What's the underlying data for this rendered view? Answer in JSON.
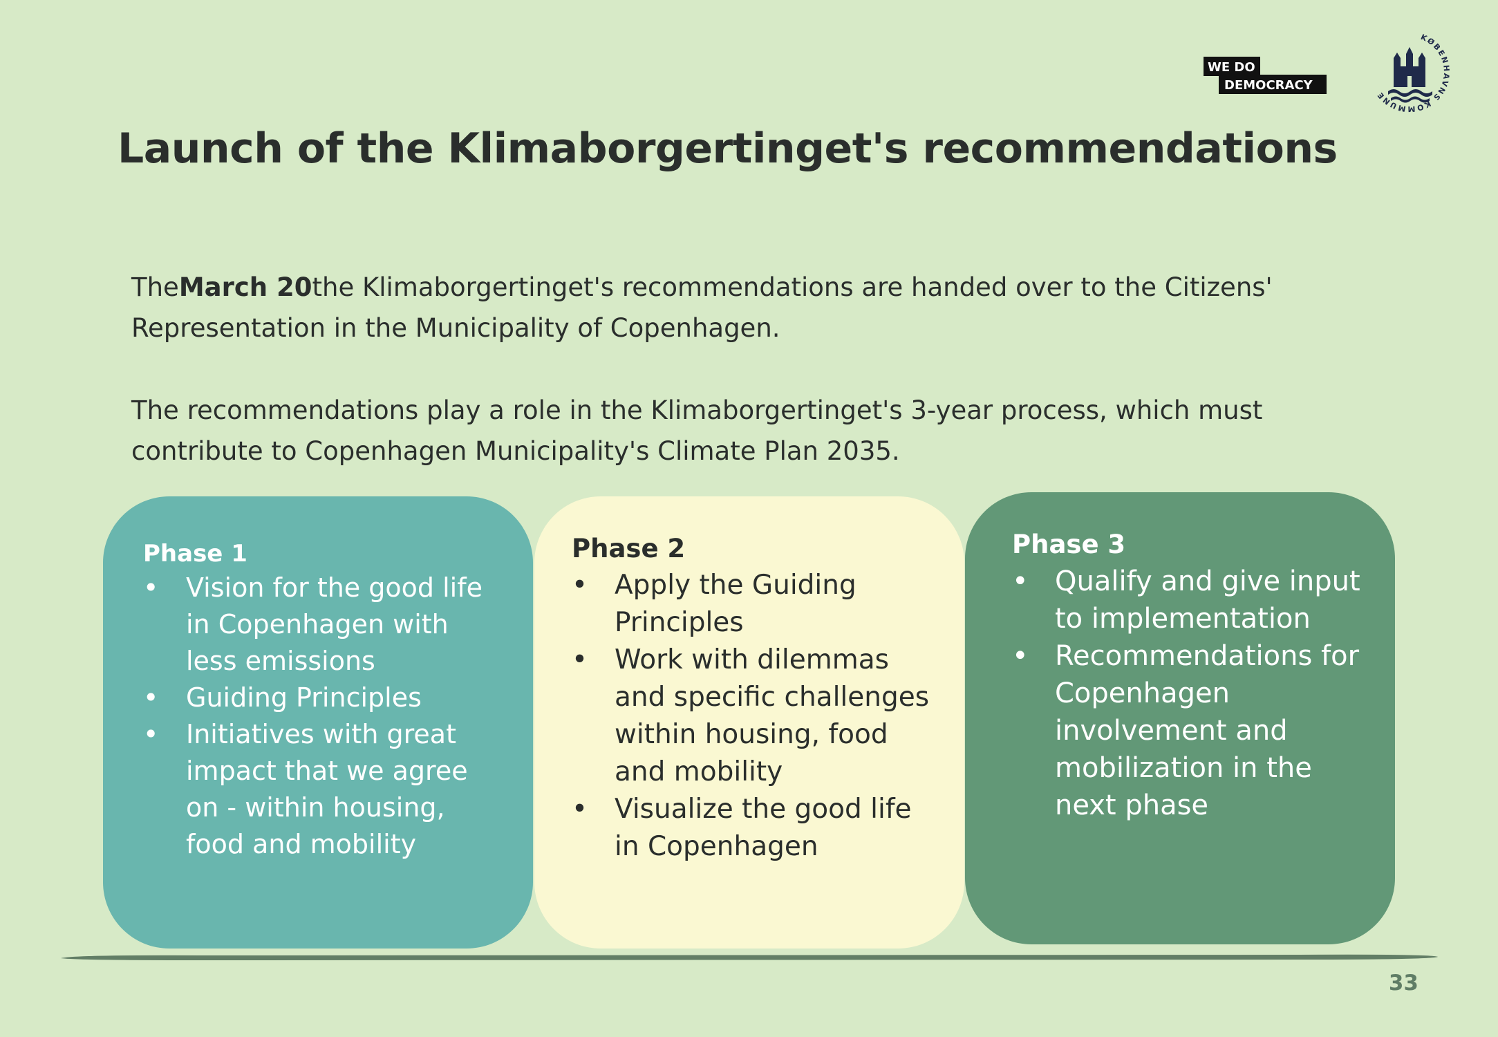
{
  "logos": {
    "wdd_line1": "WE DO",
    "wdd_line2": "DEMOCRACY",
    "kk_text": "KØBENHAVNS KOMMUNE"
  },
  "title": "Launch of the Klimaborgertinget's recommendations",
  "intro": {
    "p1_pre": "The",
    "p1_bold": "March 20",
    "p1_post": "the Klimaborgertinget's recommendations are handed over to the Citizens' Representation in the Municipality of Copenhagen.",
    "p2": "The recommendations play a role in the Klimaborgertinget's 3-year process, which must contribute to Copenhagen Municipality's Climate Plan 2035."
  },
  "phases": [
    {
      "title": "Phase 1",
      "items": [
        "Vision for the good life in Copenhagen with less emissions",
        "Guiding Principles",
        "Initiatives with great impact that we agree on - within housing, food and mobility"
      ]
    },
    {
      "title": "Phase 2",
      "items": [
        "Apply the Guiding Principles",
        "Work with dilemmas and specific challenges within housing, food and mobility",
        "Visualize the good life in Copenhagen"
      ]
    },
    {
      "title": "Phase 3",
      "items": [
        "Qualify and give input to implementation",
        "Recommendations for Copenhagen involvement and mobilization in the next phase"
      ]
    }
  ],
  "colors": {
    "background": "#d7eac7",
    "phase1": "#69b6ae",
    "phase2": "#faf8d2",
    "phase3": "#629877",
    "ground": "#627e66"
  },
  "page_number": "33"
}
